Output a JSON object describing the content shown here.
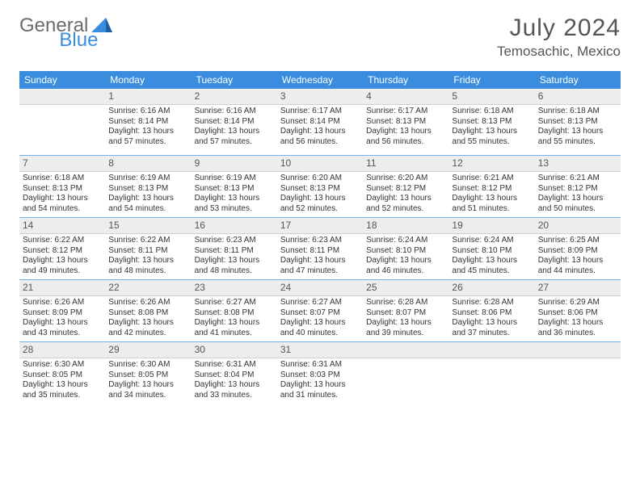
{
  "brand": {
    "part1": "General",
    "part2": "Blue",
    "accent": "#3a8dde",
    "gray": "#6b6b6b"
  },
  "title": "July 2024",
  "location": "Temosachic, Mexico",
  "dayNames": [
    "Sunday",
    "Monday",
    "Tuesday",
    "Wednesday",
    "Thursday",
    "Friday",
    "Saturday"
  ],
  "colors": {
    "headerBg": "#3a8dde",
    "headerText": "#ffffff",
    "daynumBg": "#ededed",
    "sep": "#3a8dde",
    "text": "#333333",
    "pageBg": "#ffffff"
  },
  "fonts": {
    "title_pt": 30,
    "location_pt": 17,
    "dayhead_pt": 12,
    "daynum_pt": 12,
    "body_pt": 10
  },
  "layout": {
    "cols": 7,
    "rows": 5,
    "firstDayOffset": 1,
    "lastDate": 31
  },
  "linePrefixes": {
    "sunrise": "Sunrise: ",
    "sunset": "Sunset: ",
    "daylight": "Daylight: "
  },
  "days": [
    {
      "n": 1,
      "sunrise": "6:16 AM",
      "sunset": "8:14 PM",
      "daylight": "13 hours and 57 minutes."
    },
    {
      "n": 2,
      "sunrise": "6:16 AM",
      "sunset": "8:14 PM",
      "daylight": "13 hours and 57 minutes."
    },
    {
      "n": 3,
      "sunrise": "6:17 AM",
      "sunset": "8:14 PM",
      "daylight": "13 hours and 56 minutes."
    },
    {
      "n": 4,
      "sunrise": "6:17 AM",
      "sunset": "8:13 PM",
      "daylight": "13 hours and 56 minutes."
    },
    {
      "n": 5,
      "sunrise": "6:18 AM",
      "sunset": "8:13 PM",
      "daylight": "13 hours and 55 minutes."
    },
    {
      "n": 6,
      "sunrise": "6:18 AM",
      "sunset": "8:13 PM",
      "daylight": "13 hours and 55 minutes."
    },
    {
      "n": 7,
      "sunrise": "6:18 AM",
      "sunset": "8:13 PM",
      "daylight": "13 hours and 54 minutes."
    },
    {
      "n": 8,
      "sunrise": "6:19 AM",
      "sunset": "8:13 PM",
      "daylight": "13 hours and 54 minutes."
    },
    {
      "n": 9,
      "sunrise": "6:19 AM",
      "sunset": "8:13 PM",
      "daylight": "13 hours and 53 minutes."
    },
    {
      "n": 10,
      "sunrise": "6:20 AM",
      "sunset": "8:13 PM",
      "daylight": "13 hours and 52 minutes."
    },
    {
      "n": 11,
      "sunrise": "6:20 AM",
      "sunset": "8:12 PM",
      "daylight": "13 hours and 52 minutes."
    },
    {
      "n": 12,
      "sunrise": "6:21 AM",
      "sunset": "8:12 PM",
      "daylight": "13 hours and 51 minutes."
    },
    {
      "n": 13,
      "sunrise": "6:21 AM",
      "sunset": "8:12 PM",
      "daylight": "13 hours and 50 minutes."
    },
    {
      "n": 14,
      "sunrise": "6:22 AM",
      "sunset": "8:12 PM",
      "daylight": "13 hours and 49 minutes."
    },
    {
      "n": 15,
      "sunrise": "6:22 AM",
      "sunset": "8:11 PM",
      "daylight": "13 hours and 48 minutes."
    },
    {
      "n": 16,
      "sunrise": "6:23 AM",
      "sunset": "8:11 PM",
      "daylight": "13 hours and 48 minutes."
    },
    {
      "n": 17,
      "sunrise": "6:23 AM",
      "sunset": "8:11 PM",
      "daylight": "13 hours and 47 minutes."
    },
    {
      "n": 18,
      "sunrise": "6:24 AM",
      "sunset": "8:10 PM",
      "daylight": "13 hours and 46 minutes."
    },
    {
      "n": 19,
      "sunrise": "6:24 AM",
      "sunset": "8:10 PM",
      "daylight": "13 hours and 45 minutes."
    },
    {
      "n": 20,
      "sunrise": "6:25 AM",
      "sunset": "8:09 PM",
      "daylight": "13 hours and 44 minutes."
    },
    {
      "n": 21,
      "sunrise": "6:26 AM",
      "sunset": "8:09 PM",
      "daylight": "13 hours and 43 minutes."
    },
    {
      "n": 22,
      "sunrise": "6:26 AM",
      "sunset": "8:08 PM",
      "daylight": "13 hours and 42 minutes."
    },
    {
      "n": 23,
      "sunrise": "6:27 AM",
      "sunset": "8:08 PM",
      "daylight": "13 hours and 41 minutes."
    },
    {
      "n": 24,
      "sunrise": "6:27 AM",
      "sunset": "8:07 PM",
      "daylight": "13 hours and 40 minutes."
    },
    {
      "n": 25,
      "sunrise": "6:28 AM",
      "sunset": "8:07 PM",
      "daylight": "13 hours and 39 minutes."
    },
    {
      "n": 26,
      "sunrise": "6:28 AM",
      "sunset": "8:06 PM",
      "daylight": "13 hours and 37 minutes."
    },
    {
      "n": 27,
      "sunrise": "6:29 AM",
      "sunset": "8:06 PM",
      "daylight": "13 hours and 36 minutes."
    },
    {
      "n": 28,
      "sunrise": "6:30 AM",
      "sunset": "8:05 PM",
      "daylight": "13 hours and 35 minutes."
    },
    {
      "n": 29,
      "sunrise": "6:30 AM",
      "sunset": "8:05 PM",
      "daylight": "13 hours and 34 minutes."
    },
    {
      "n": 30,
      "sunrise": "6:31 AM",
      "sunset": "8:04 PM",
      "daylight": "13 hours and 33 minutes."
    },
    {
      "n": 31,
      "sunrise": "6:31 AM",
      "sunset": "8:03 PM",
      "daylight": "13 hours and 31 minutes."
    }
  ]
}
